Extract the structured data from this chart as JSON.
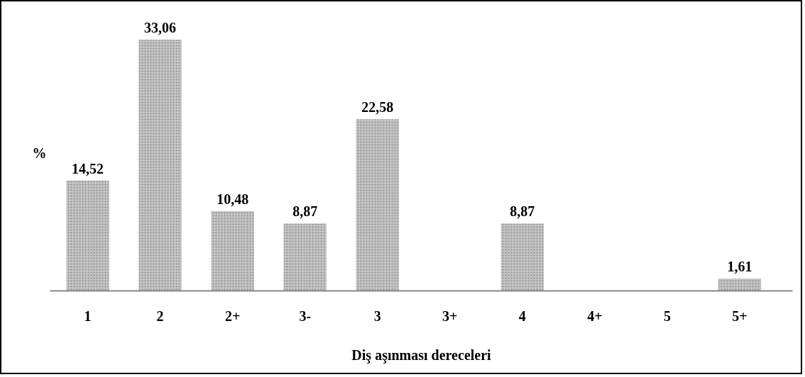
{
  "chart_data": {
    "type": "bar",
    "xlabel": "Diş aşınması dereceleri",
    "ylabel": "%",
    "categories": [
      "1",
      "2",
      "2+",
      "3-",
      "3",
      "3+",
      "4",
      "4+",
      "5",
      "5+"
    ],
    "values": [
      14.52,
      33.06,
      10.48,
      8.87,
      22.58,
      null,
      8.87,
      null,
      null,
      1.61
    ],
    "value_labels": [
      "14,52",
      "33,06",
      "10,48",
      "8,87",
      "22,58",
      null,
      "8,87",
      null,
      null,
      "1,61"
    ],
    "color": "#c4c4c4",
    "grid": false
  }
}
